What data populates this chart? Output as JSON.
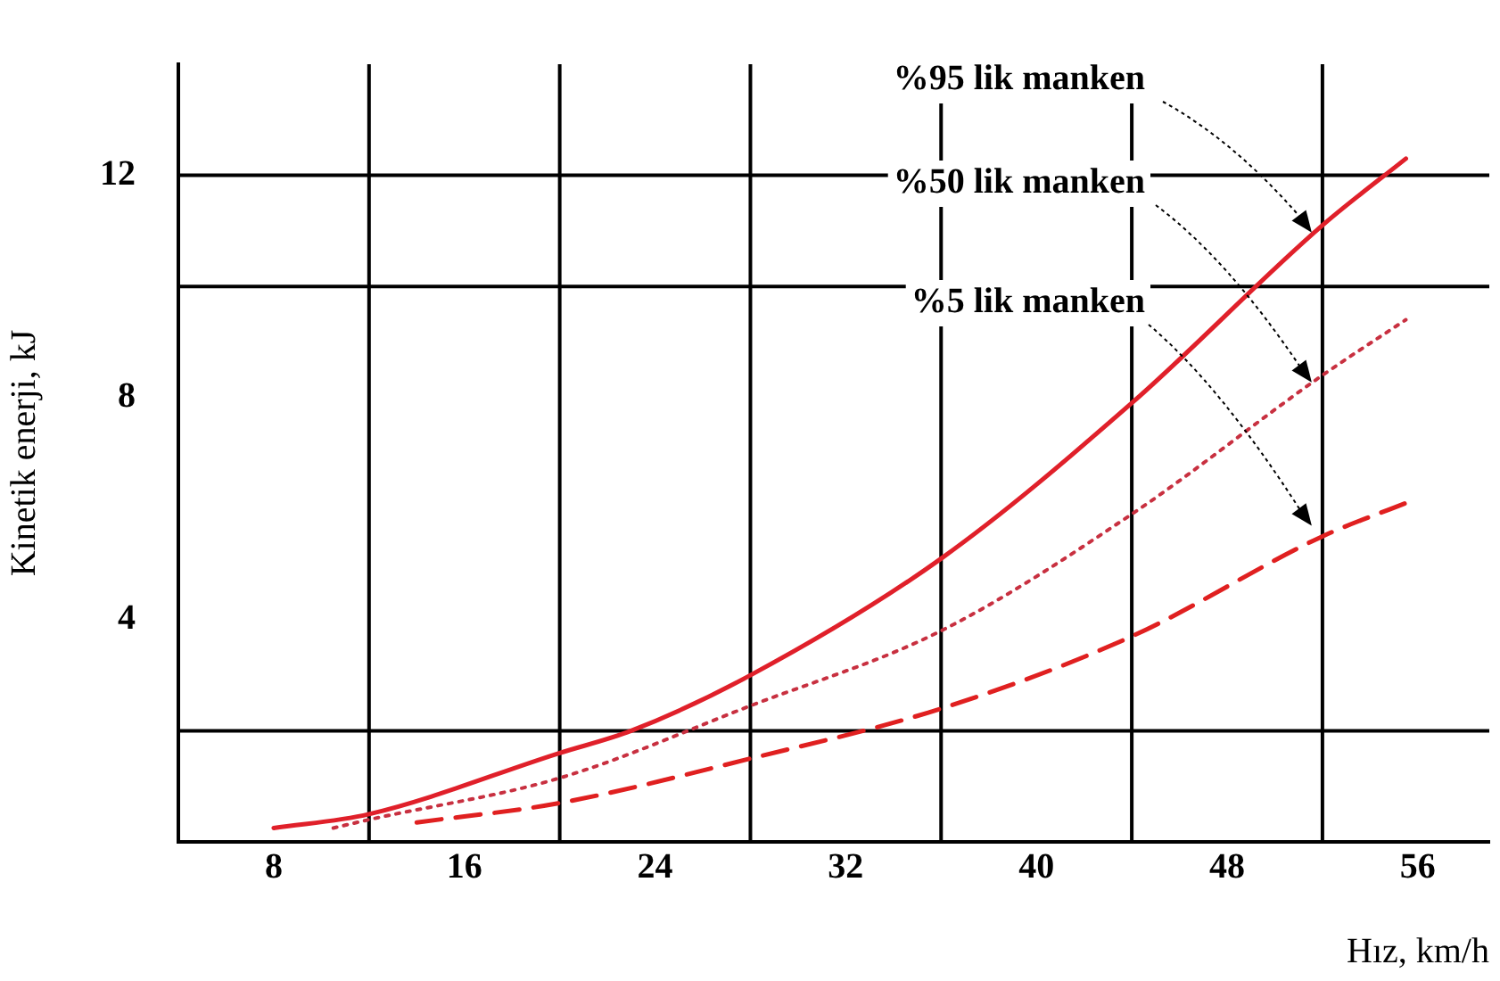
{
  "chart_data": {
    "type": "line",
    "xlabel": "Hız, km/h",
    "ylabel": "Kinetik enerji, kJ",
    "xlim": [
      4,
      59
    ],
    "xticks": [
      8,
      16,
      24,
      32,
      40,
      48,
      56
    ],
    "ylim": [
      0,
      14
    ],
    "yticks": [
      4,
      8,
      12
    ],
    "grid": false,
    "legend": false,
    "marker": "none",
    "ref_lines": [
      {
        "axis": "x",
        "value": 12,
        "color": "#000000"
      },
      {
        "axis": "x",
        "value": 20,
        "color": "#000000"
      },
      {
        "axis": "x",
        "value": 28,
        "color": "#000000"
      },
      {
        "axis": "x",
        "value": 36,
        "color": "#000000"
      },
      {
        "axis": "x",
        "value": 44,
        "color": "#000000"
      },
      {
        "axis": "x",
        "value": 52,
        "color": "#000000"
      },
      {
        "axis": "y",
        "value": 2,
        "color": "#000000"
      },
      {
        "axis": "y",
        "value": 10,
        "color": "#000000"
      },
      {
        "axis": "y",
        "value": 12,
        "color": "#000000"
      }
    ],
    "series": [
      {
        "name": "%95 lik manken",
        "color": "#e0202a",
        "line_style": "solid",
        "x": [
          8,
          12,
          20,
          23,
          28,
          36,
          44,
          52,
          55.5
        ],
        "values": [
          0.25,
          0.5,
          1.6,
          2.0,
          3.0,
          5.1,
          7.9,
          11.1,
          12.3
        ]
      },
      {
        "name": "%50 lik manken",
        "color": "#c83040",
        "line_style": "dotted",
        "x": [
          10.5,
          12,
          20,
          28,
          36,
          44,
          52,
          55.5
        ],
        "values": [
          0.25,
          0.4,
          1.15,
          2.45,
          3.8,
          5.9,
          8.4,
          9.4
        ]
      },
      {
        "name": "%5 lik manken",
        "color": "#e02020",
        "line_style": "dashed",
        "x": [
          14,
          20,
          28,
          36,
          44,
          52,
          55.5
        ],
        "values": [
          0.35,
          0.7,
          1.5,
          2.4,
          3.7,
          5.5,
          6.1
        ]
      }
    ]
  }
}
